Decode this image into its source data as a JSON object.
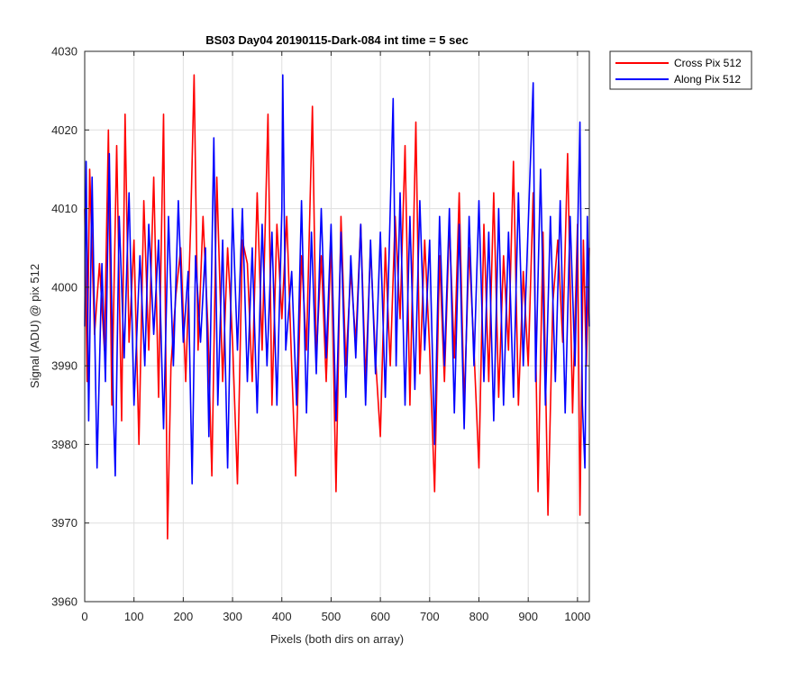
{
  "chart_data": {
    "type": "line",
    "title": "BS03 Day04 20190115-Dark-084 int time = 5 sec",
    "xlabel": "Pixels (both dirs on array)",
    "ylabel": "Signal (ADU) @ pix 512",
    "xlim": [
      0,
      1024
    ],
    "ylim": [
      3960,
      4030
    ],
    "xticks": [
      0,
      100,
      200,
      300,
      400,
      500,
      600,
      700,
      800,
      900,
      1000
    ],
    "yticks": [
      3960,
      3970,
      3980,
      3990,
      4000,
      4010,
      4020,
      4030
    ],
    "grid": true,
    "legend_position": "top-right-outside",
    "series": [
      {
        "name": "Cross Pix 512",
        "color": "#ff0000",
        "points": [
          [
            0,
            4010
          ],
          [
            5,
            3988
          ],
          [
            10,
            4015
          ],
          [
            20,
            3994
          ],
          [
            30,
            4003
          ],
          [
            40,
            3992
          ],
          [
            48,
            4020
          ],
          [
            55,
            3985
          ],
          [
            65,
            4018
          ],
          [
            75,
            3983
          ],
          [
            82,
            4022
          ],
          [
            90,
            3993
          ],
          [
            100,
            4006
          ],
          [
            110,
            3980
          ],
          [
            120,
            4011
          ],
          [
            130,
            3992
          ],
          [
            140,
            4014
          ],
          [
            150,
            3986
          ],
          [
            160,
            4022
          ],
          [
            168,
            3968
          ],
          [
            175,
            3990
          ],
          [
            185,
            3999
          ],
          [
            195,
            4005
          ],
          [
            205,
            3988
          ],
          [
            215,
            4008
          ],
          [
            222,
            4027
          ],
          [
            230,
            3992
          ],
          [
            240,
            4009
          ],
          [
            250,
            3995
          ],
          [
            258,
            3976
          ],
          [
            268,
            4014
          ],
          [
            280,
            3988
          ],
          [
            290,
            4005
          ],
          [
            300,
            3993
          ],
          [
            310,
            3975
          ],
          [
            320,
            4006
          ],
          [
            330,
            4003
          ],
          [
            340,
            3988
          ],
          [
            350,
            4012
          ],
          [
            360,
            3992
          ],
          [
            372,
            4022
          ],
          [
            380,
            3985
          ],
          [
            390,
            4008
          ],
          [
            400,
            3996
          ],
          [
            410,
            4009
          ],
          [
            420,
            3990
          ],
          [
            428,
            3976
          ],
          [
            440,
            4004
          ],
          [
            450,
            3992
          ],
          [
            462,
            4023
          ],
          [
            470,
            3991
          ],
          [
            480,
            4004
          ],
          [
            490,
            3988
          ],
          [
            500,
            4006
          ],
          [
            510,
            3974
          ],
          [
            520,
            4009
          ],
          [
            530,
            3990
          ],
          [
            540,
            4002
          ],
          [
            550,
            3993
          ],
          [
            560,
            4008
          ],
          [
            570,
            3988
          ],
          [
            580,
            4005
          ],
          [
            590,
            3991
          ],
          [
            600,
            3981
          ],
          [
            610,
            4005
          ],
          [
            620,
            3990
          ],
          [
            630,
            4009
          ],
          [
            640,
            3996
          ],
          [
            650,
            4018
          ],
          [
            660,
            3985
          ],
          [
            672,
            4021
          ],
          [
            680,
            3989
          ],
          [
            690,
            4006
          ],
          [
            700,
            3992
          ],
          [
            710,
            3974
          ],
          [
            720,
            4004
          ],
          [
            730,
            3988
          ],
          [
            740,
            4008
          ],
          [
            750,
            3991
          ],
          [
            760,
            4012
          ],
          [
            770,
            3985
          ],
          [
            780,
            4005
          ],
          [
            790,
            3992
          ],
          [
            800,
            3977
          ],
          [
            810,
            4008
          ],
          [
            820,
            3988
          ],
          [
            830,
            4012
          ],
          [
            840,
            3986
          ],
          [
            850,
            4004
          ],
          [
            860,
            3992
          ],
          [
            870,
            4016
          ],
          [
            880,
            3985
          ],
          [
            890,
            4002
          ],
          [
            900,
            3990
          ],
          [
            910,
            4012
          ],
          [
            920,
            3974
          ],
          [
            930,
            4007
          ],
          [
            940,
            3971
          ],
          [
            950,
            3998
          ],
          [
            960,
            4006
          ],
          [
            970,
            3993
          ],
          [
            980,
            4017
          ],
          [
            990,
            3984
          ],
          [
            1000,
            4008
          ],
          [
            1005,
            3971
          ],
          [
            1012,
            4006
          ],
          [
            1018,
            3990
          ],
          [
            1024,
            4005
          ]
        ]
      },
      {
        "name": "Along Pix 512",
        "color": "#0000ff",
        "points": [
          [
            0,
            3995
          ],
          [
            3,
            4016
          ],
          [
            8,
            3983
          ],
          [
            15,
            4014
          ],
          [
            25,
            3977
          ],
          [
            35,
            4003
          ],
          [
            42,
            3988
          ],
          [
            50,
            4017
          ],
          [
            58,
            3985
          ],
          [
            62,
            3976
          ],
          [
            70,
            4009
          ],
          [
            80,
            3991
          ],
          [
            90,
            4012
          ],
          [
            100,
            3985
          ],
          [
            112,
            4004
          ],
          [
            122,
            3990
          ],
          [
            130,
            4008
          ],
          [
            140,
            3994
          ],
          [
            150,
            4006
          ],
          [
            160,
            3982
          ],
          [
            170,
            4009
          ],
          [
            180,
            3990
          ],
          [
            190,
            4011
          ],
          [
            200,
            3993
          ],
          [
            210,
            4002
          ],
          [
            218,
            3975
          ],
          [
            225,
            4004
          ],
          [
            235,
            3993
          ],
          [
            245,
            4005
          ],
          [
            252,
            3981
          ],
          [
            262,
            4019
          ],
          [
            270,
            3985
          ],
          [
            280,
            4006
          ],
          [
            290,
            3977
          ],
          [
            300,
            4010
          ],
          [
            310,
            3992
          ],
          [
            320,
            4010
          ],
          [
            330,
            3988
          ],
          [
            340,
            4005
          ],
          [
            350,
            3984
          ],
          [
            360,
            4008
          ],
          [
            370,
            3990
          ],
          [
            380,
            4007
          ],
          [
            390,
            3985
          ],
          [
            400,
            4010
          ],
          [
            402,
            4027
          ],
          [
            408,
            3992
          ],
          [
            420,
            4002
          ],
          [
            430,
            3985
          ],
          [
            440,
            4011
          ],
          [
            450,
            3984
          ],
          [
            460,
            4007
          ],
          [
            470,
            3989
          ],
          [
            480,
            4010
          ],
          [
            490,
            3991
          ],
          [
            500,
            4008
          ],
          [
            510,
            3983
          ],
          [
            520,
            4007
          ],
          [
            530,
            3986
          ],
          [
            540,
            4004
          ],
          [
            550,
            3991
          ],
          [
            560,
            4008
          ],
          [
            570,
            3985
          ],
          [
            580,
            4006
          ],
          [
            590,
            3989
          ],
          [
            600,
            4007
          ],
          [
            610,
            3986
          ],
          [
            620,
            4010
          ],
          [
            626,
            4024
          ],
          [
            632,
            3990
          ],
          [
            640,
            4012
          ],
          [
            650,
            3985
          ],
          [
            660,
            4009
          ],
          [
            670,
            3987
          ],
          [
            680,
            4011
          ],
          [
            690,
            3992
          ],
          [
            700,
            4006
          ],
          [
            710,
            3980
          ],
          [
            720,
            4009
          ],
          [
            730,
            3990
          ],
          [
            740,
            4010
          ],
          [
            750,
            3984
          ],
          [
            760,
            4008
          ],
          [
            770,
            3982
          ],
          [
            780,
            4009
          ],
          [
            790,
            3990
          ],
          [
            800,
            4011
          ],
          [
            810,
            3988
          ],
          [
            820,
            4007
          ],
          [
            830,
            3983
          ],
          [
            840,
            4010
          ],
          [
            850,
            3985
          ],
          [
            860,
            4007
          ],
          [
            870,
            3986
          ],
          [
            880,
            4012
          ],
          [
            890,
            3990
          ],
          [
            900,
            4008
          ],
          [
            910,
            4026
          ],
          [
            915,
            3988
          ],
          [
            925,
            4015
          ],
          [
            935,
            3985
          ],
          [
            945,
            4009
          ],
          [
            955,
            3988
          ],
          [
            965,
            4011
          ],
          [
            975,
            3984
          ],
          [
            985,
            4009
          ],
          [
            995,
            3990
          ],
          [
            1005,
            4021
          ],
          [
            1010,
            3985
          ],
          [
            1015,
            3977
          ],
          [
            1020,
            4009
          ],
          [
            1024,
            3995
          ]
        ]
      }
    ]
  }
}
